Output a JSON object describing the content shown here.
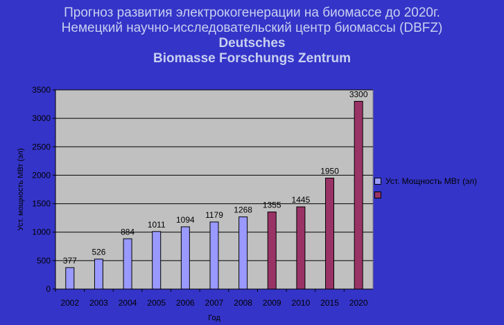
{
  "title_lines": [
    "Прогноз развития электрокогенерации на биомассе до 2020г.",
    "Немецкий научно-исследовательский центр биомассы (DBFZ)",
    "Deutsches",
    "Biomasse Forschungs Zentrum"
  ],
  "colors": {
    "background": "#3434c8",
    "plot_background": "#c0c0c0",
    "series_actual": "#9999ff",
    "series_forecast": "#993366",
    "title_text": "#c8d0f0"
  },
  "chart_data": {
    "type": "bar",
    "categories": [
      "2002",
      "2003",
      "2004",
      "2005",
      "2006",
      "2007",
      "2008",
      "2009",
      "2010",
      "2015",
      "2020"
    ],
    "series": [
      {
        "name": "Уст. Мощность МВт (эл)",
        "values": [
          377,
          526,
          884,
          1011,
          1094,
          1179,
          1268,
          null,
          null,
          null,
          null
        ]
      },
      {
        "name": "",
        "values": [
          null,
          null,
          null,
          null,
          null,
          null,
          null,
          1355,
          1445,
          1950,
          3300
        ]
      }
    ],
    "xlabel": "Год",
    "ylabel": "Уст. мощность МВт (эл)",
    "ylim": [
      0,
      3500
    ],
    "yticks": [
      0,
      500,
      1000,
      1500,
      2000,
      2500,
      3000,
      3500
    ],
    "grid": true,
    "legend_position": "right"
  }
}
